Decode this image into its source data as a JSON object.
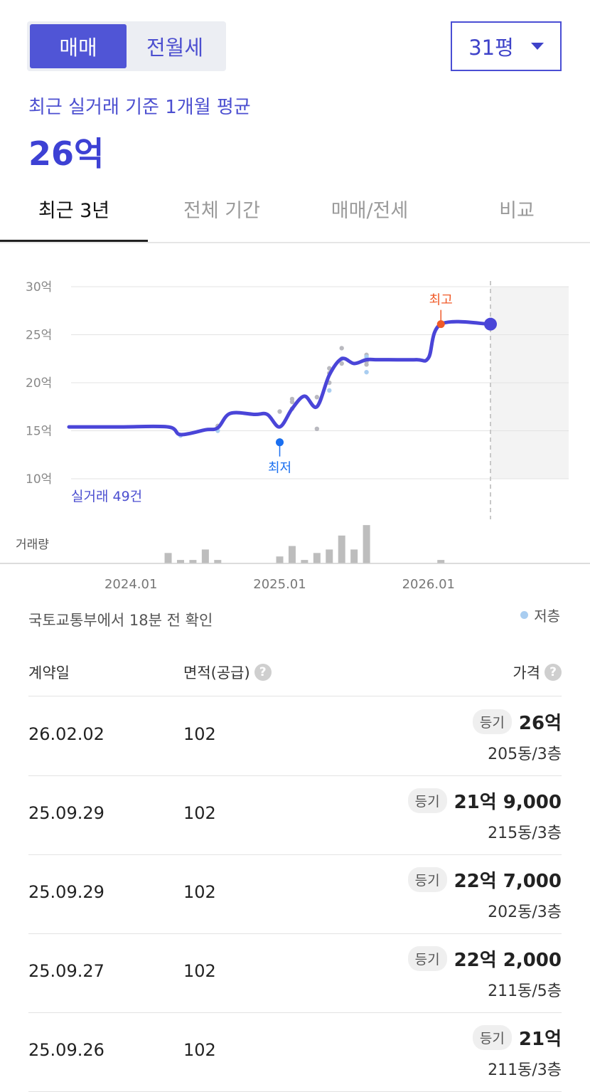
{
  "deal_type_tabs": [
    {
      "label": "매매",
      "active": true
    },
    {
      "label": "전월세",
      "active": false
    }
  ],
  "size_select": {
    "value": "31평"
  },
  "summary": {
    "label": "최근 실거래 기준 1개월 평균",
    "value": "26억"
  },
  "period_tabs": [
    {
      "label": "최근 3년",
      "active": true
    },
    {
      "label": "전체 기간",
      "active": false
    },
    {
      "label": "매매/전세",
      "active": false
    },
    {
      "label": "비교",
      "active": false
    }
  ],
  "chart_data": {
    "type": "line",
    "ylim": [
      10,
      30
    ],
    "y_ticks": [
      "30억",
      "25억",
      "20억",
      "15억",
      "10억"
    ],
    "x_ticks": [
      "2024.01",
      "2025.01",
      "2026.01"
    ],
    "deal_count_label": "실거래 49건",
    "volume_label": "거래량",
    "high_label": "최고",
    "low_label": "최저",
    "series_color": "#4a45d8",
    "series": [
      {
        "values": [
          {
            "x": "2023.08",
            "y": 15.4
          },
          {
            "x": "2023.12",
            "y": 15.4
          },
          {
            "x": "2024.04",
            "y": 15.4
          },
          {
            "x": "2024.05",
            "y": 14.6
          },
          {
            "x": "2024.07",
            "y": 15.1
          },
          {
            "x": "2024.08",
            "y": 15.3
          },
          {
            "x": "2024.09",
            "y": 16.8
          },
          {
            "x": "2024.11",
            "y": 16.7
          },
          {
            "x": "2024.12",
            "y": 16.7
          },
          {
            "x": "2025.01",
            "y": 15.4
          },
          {
            "x": "2025.02",
            "y": 17.3
          },
          {
            "x": "2025.03",
            "y": 18.6
          },
          {
            "x": "2025.04",
            "y": 17.5
          },
          {
            "x": "2025.05",
            "y": 20.8
          },
          {
            "x": "2025.06",
            "y": 22.5
          },
          {
            "x": "2025.07",
            "y": 22.0
          },
          {
            "x": "2025.08",
            "y": 22.4
          },
          {
            "x": "2025.09",
            "y": 22.4
          },
          {
            "x": "2025.12",
            "y": 22.4
          },
          {
            "x": "2026.01",
            "y": 22.6
          },
          {
            "x": "2026.02",
            "y": 26.1
          },
          {
            "x": "2026.06",
            "y": 26.1
          }
        ]
      }
    ],
    "deals": [
      {
        "x": "2024.05",
        "y": 14.5,
        "low_floor": true
      },
      {
        "x": "2024.08",
        "y": 15.0,
        "low_floor": true
      },
      {
        "x": "2024.08",
        "y": 15.5,
        "low_floor": false
      },
      {
        "x": "2025.01",
        "y": 17.0,
        "low_floor": false
      },
      {
        "x": "2025.01",
        "y": 14.0,
        "low_floor": false
      },
      {
        "x": "2025.02",
        "y": 18.3,
        "low_floor": false
      },
      {
        "x": "2025.02",
        "y": 18.0,
        "low_floor": false
      },
      {
        "x": "2025.02",
        "y": 17.3,
        "low_floor": false
      },
      {
        "x": "2025.04",
        "y": 18.5,
        "low_floor": false
      },
      {
        "x": "2025.04",
        "y": 15.2,
        "low_floor": false
      },
      {
        "x": "2025.05",
        "y": 21.5,
        "low_floor": false
      },
      {
        "x": "2025.05",
        "y": 21.0,
        "low_floor": false
      },
      {
        "x": "2025.05",
        "y": 19.2,
        "low_floor": true
      },
      {
        "x": "2025.05",
        "y": 20.0,
        "low_floor": false
      },
      {
        "x": "2025.06",
        "y": 23.6,
        "low_floor": false
      },
      {
        "x": "2025.06",
        "y": 22.0,
        "low_floor": false
      },
      {
        "x": "2025.06",
        "y": 22.5,
        "low_floor": true
      },
      {
        "x": "2025.08",
        "y": 22.9,
        "low_floor": false
      },
      {
        "x": "2025.08",
        "y": 22.7,
        "low_floor": true
      },
      {
        "x": "2025.08",
        "y": 22.2,
        "low_floor": false
      },
      {
        "x": "2025.08",
        "y": 21.9,
        "low_floor": false
      },
      {
        "x": "2025.08",
        "y": 21.1,
        "low_floor": true
      }
    ],
    "high_point": {
      "x": "2026.02",
      "y": 26.1
    },
    "low_point": {
      "x": "2025.01",
      "y": 13.8
    },
    "current_point": {
      "x": "2026.06",
      "y": 26.1
    },
    "volume": [
      {
        "x": "2024.04",
        "count": 3
      },
      {
        "x": "2024.05",
        "count": 1
      },
      {
        "x": "2024.06",
        "count": 1
      },
      {
        "x": "2024.07",
        "count": 4
      },
      {
        "x": "2024.08",
        "count": 1
      },
      {
        "x": "2025.01",
        "count": 2
      },
      {
        "x": "2025.02",
        "count": 5
      },
      {
        "x": "2025.03",
        "count": 1
      },
      {
        "x": "2025.04",
        "count": 3
      },
      {
        "x": "2025.05",
        "count": 4
      },
      {
        "x": "2025.06",
        "count": 8
      },
      {
        "x": "2025.07",
        "count": 4
      },
      {
        "x": "2025.08",
        "count": 11
      },
      {
        "x": "2026.02",
        "count": 1
      }
    ]
  },
  "source_note": "국토교통부에서 18분 전 확인",
  "legend_low_floor": "저층",
  "table": {
    "headers": {
      "date": "계약일",
      "area": "면적(공급)",
      "price": "가격"
    },
    "rows": [
      {
        "date": "26.02.02",
        "area": "102",
        "badge": "등기",
        "price": "26억",
        "unit": "205동/3층"
      },
      {
        "date": "25.09.29",
        "area": "102",
        "badge": "등기",
        "price": "21억 9,000",
        "unit": "215동/3층"
      },
      {
        "date": "25.09.29",
        "area": "102",
        "badge": "등기",
        "price": "22억 7,000",
        "unit": "202동/3층"
      },
      {
        "date": "25.09.27",
        "area": "102",
        "badge": "등기",
        "price": "22억 2,000",
        "unit": "211동/5층"
      },
      {
        "date": "25.09.26",
        "area": "102",
        "badge": "등기",
        "price": "21억",
        "unit": "211동/3층"
      }
    ]
  }
}
